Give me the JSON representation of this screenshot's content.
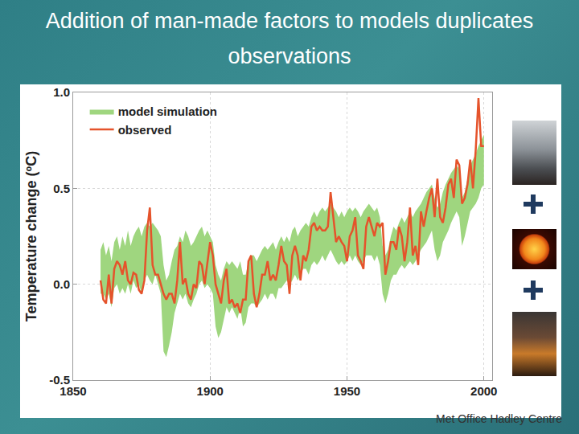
{
  "chart_data": {
    "type": "line",
    "title": "Addition of man-made factors to models duplicates observations",
    "y_label": "Temperature change (ºC)",
    "source": "Met Office Hadley Centre",
    "x": [
      1860,
      1861,
      1862,
      1863,
      1864,
      1865,
      1866,
      1867,
      1868,
      1869,
      1870,
      1871,
      1872,
      1873,
      1874,
      1875,
      1876,
      1877,
      1878,
      1879,
      1880,
      1881,
      1882,
      1883,
      1884,
      1885,
      1886,
      1887,
      1888,
      1889,
      1890,
      1891,
      1892,
      1893,
      1894,
      1895,
      1896,
      1897,
      1898,
      1899,
      1900,
      1901,
      1902,
      1903,
      1904,
      1905,
      1906,
      1907,
      1908,
      1909,
      1910,
      1911,
      1912,
      1913,
      1914,
      1915,
      1916,
      1917,
      1918,
      1919,
      1920,
      1921,
      1922,
      1923,
      1924,
      1925,
      1926,
      1927,
      1928,
      1929,
      1930,
      1931,
      1932,
      1933,
      1934,
      1935,
      1936,
      1937,
      1938,
      1939,
      1940,
      1941,
      1942,
      1943,
      1944,
      1945,
      1946,
      1947,
      1948,
      1949,
      1950,
      1951,
      1952,
      1953,
      1954,
      1955,
      1956,
      1957,
      1958,
      1959,
      1960,
      1961,
      1962,
      1963,
      1964,
      1965,
      1966,
      1967,
      1968,
      1969,
      1970,
      1971,
      1972,
      1973,
      1974,
      1975,
      1976,
      1977,
      1978,
      1979,
      1980,
      1981,
      1982,
      1983,
      1984,
      1985,
      1986,
      1987,
      1988,
      1989,
      1990,
      1991,
      1992,
      1993,
      1994,
      1995,
      1996,
      1997,
      1998,
      1999,
      2000
    ],
    "series": [
      {
        "name": "observed",
        "color": "#e5532b",
        "type": "line",
        "values": [
          0.02,
          -0.08,
          -0.1,
          0.05,
          -0.1,
          0.08,
          0.12,
          0.1,
          0.05,
          0.12,
          0.02,
          0.0,
          0.06,
          0.05,
          -0.03,
          -0.05,
          0.02,
          0.28,
          0.4,
          0.1,
          0.05,
          0.05,
          0.0,
          -0.05,
          -0.08,
          -0.05,
          -0.05,
          -0.1,
          0.02,
          0.22,
          0.0,
          0.03,
          -0.05,
          -0.08,
          0.0,
          -0.02,
          0.12,
          0.1,
          0.0,
          0.1,
          0.22,
          0.15,
          0.0,
          -0.05,
          -0.1,
          0.02,
          0.08,
          -0.1,
          -0.08,
          -0.12,
          -0.1,
          -0.15,
          -0.08,
          -0.08,
          0.12,
          0.15,
          -0.05,
          -0.12,
          -0.05,
          0.05,
          0.05,
          0.12,
          0.02,
          0.05,
          0.02,
          0.1,
          0.2,
          0.12,
          0.1,
          -0.05,
          0.15,
          0.2,
          0.15,
          0.02,
          0.15,
          0.12,
          0.18,
          0.3,
          0.32,
          0.28,
          0.3,
          0.28,
          0.28,
          0.3,
          0.48,
          0.35,
          0.22,
          0.25,
          0.22,
          0.2,
          0.12,
          0.25,
          0.28,
          0.35,
          0.15,
          0.12,
          0.08,
          0.3,
          0.35,
          0.3,
          0.25,
          0.32,
          0.3,
          0.32,
          0.05,
          0.12,
          0.22,
          0.22,
          0.18,
          0.3,
          0.25,
          0.12,
          0.22,
          0.4,
          0.15,
          0.2,
          0.1,
          0.38,
          0.3,
          0.38,
          0.45,
          0.5,
          0.35,
          0.55,
          0.35,
          0.32,
          0.4,
          0.52,
          0.55,
          0.45,
          0.65,
          0.62,
          0.42,
          0.45,
          0.52,
          0.65,
          0.5,
          0.7,
          0.97,
          0.72,
          0.72
        ]
      },
      {
        "name": "model simulation",
        "color": "#9fd67f",
        "type": "band",
        "lower": [
          -0.05,
          -0.05,
          -0.08,
          -0.05,
          -0.12,
          -0.02,
          0.0,
          -0.05,
          -0.02,
          -0.05,
          0.0,
          -0.05,
          0.02,
          -0.02,
          0.0,
          -0.05,
          0.02,
          0.05,
          0.02,
          0.0,
          0.05,
          0.0,
          -0.05,
          -0.35,
          -0.38,
          -0.32,
          -0.25,
          -0.15,
          -0.1,
          -0.05,
          -0.08,
          -0.05,
          -0.1,
          -0.12,
          -0.08,
          -0.05,
          0.0,
          0.02,
          -0.02,
          0.0,
          -0.02,
          -0.05,
          -0.22,
          -0.28,
          -0.25,
          -0.18,
          -0.12,
          -0.15,
          -0.12,
          -0.15,
          -0.18,
          -0.12,
          -0.22,
          -0.2,
          -0.12,
          -0.1,
          -0.1,
          -0.12,
          -0.1,
          -0.08,
          -0.05,
          -0.08,
          -0.05,
          -0.05,
          -0.08,
          -0.02,
          -0.02,
          0.0,
          0.02,
          0.0,
          0.02,
          0.05,
          0.02,
          0.05,
          0.08,
          0.08,
          0.05,
          0.1,
          0.12,
          0.1,
          0.12,
          0.15,
          0.12,
          0.15,
          0.18,
          0.15,
          0.12,
          0.1,
          0.12,
          0.1,
          0.12,
          0.15,
          0.12,
          0.15,
          0.12,
          0.1,
          0.12,
          0.15,
          0.15,
          0.15,
          0.12,
          0.15,
          0.1,
          -0.05,
          -0.1,
          -0.05,
          0.02,
          0.05,
          0.05,
          0.08,
          0.1,
          0.08,
          0.1,
          0.12,
          0.1,
          0.12,
          0.15,
          0.18,
          0.2,
          0.22,
          0.25,
          0.28,
          0.18,
          0.12,
          0.15,
          0.22,
          0.25,
          0.28,
          0.32,
          0.35,
          0.38,
          0.35,
          0.2,
          0.25,
          0.32,
          0.38,
          0.4,
          0.42,
          0.45,
          0.5,
          0.52
        ],
        "upper": [
          0.18,
          0.22,
          0.15,
          0.2,
          0.12,
          0.22,
          0.25,
          0.18,
          0.25,
          0.2,
          0.28,
          0.2,
          0.25,
          0.28,
          0.3,
          0.25,
          0.3,
          0.32,
          0.3,
          0.32,
          0.3,
          0.28,
          0.25,
          0.1,
          0.02,
          0.05,
          0.12,
          0.18,
          0.2,
          0.25,
          0.22,
          0.28,
          0.25,
          0.2,
          0.22,
          0.25,
          0.28,
          0.3,
          0.25,
          0.28,
          0.25,
          0.22,
          0.1,
          0.05,
          0.02,
          0.08,
          0.12,
          0.1,
          0.12,
          0.1,
          0.08,
          0.12,
          0.05,
          0.05,
          0.12,
          0.15,
          0.15,
          0.12,
          0.15,
          0.18,
          0.2,
          0.18,
          0.2,
          0.22,
          0.18,
          0.22,
          0.25,
          0.22,
          0.25,
          0.22,
          0.28,
          0.3,
          0.25,
          0.28,
          0.3,
          0.32,
          0.3,
          0.35,
          0.38,
          0.35,
          0.38,
          0.4,
          0.38,
          0.4,
          0.42,
          0.4,
          0.38,
          0.35,
          0.38,
          0.35,
          0.38,
          0.4,
          0.38,
          0.4,
          0.38,
          0.35,
          0.38,
          0.4,
          0.42,
          0.4,
          0.38,
          0.4,
          0.35,
          0.2,
          0.15,
          0.18,
          0.25,
          0.3,
          0.28,
          0.32,
          0.35,
          0.32,
          0.35,
          0.38,
          0.35,
          0.38,
          0.4,
          0.42,
          0.45,
          0.48,
          0.5,
          0.52,
          0.45,
          0.4,
          0.42,
          0.48,
          0.52,
          0.55,
          0.58,
          0.6,
          0.62,
          0.6,
          0.45,
          0.48,
          0.55,
          0.62,
          0.65,
          0.68,
          0.72,
          0.75,
          0.78
        ]
      }
    ],
    "xlim": [
      1850,
      2003
    ],
    "xticks": [
      1850,
      1900,
      1950,
      2000
    ],
    "ylim": [
      -0.5,
      1.0
    ],
    "yticks": [
      {
        "value": -0.5,
        "label": "-0.5"
      },
      {
        "value": 0,
        "label": "0.0"
      },
      {
        "value": 0.5,
        "label": "0.5"
      },
      {
        "value": 1,
        "label": "1.0"
      }
    ],
    "grid": true,
    "legend": "upper left"
  }
}
